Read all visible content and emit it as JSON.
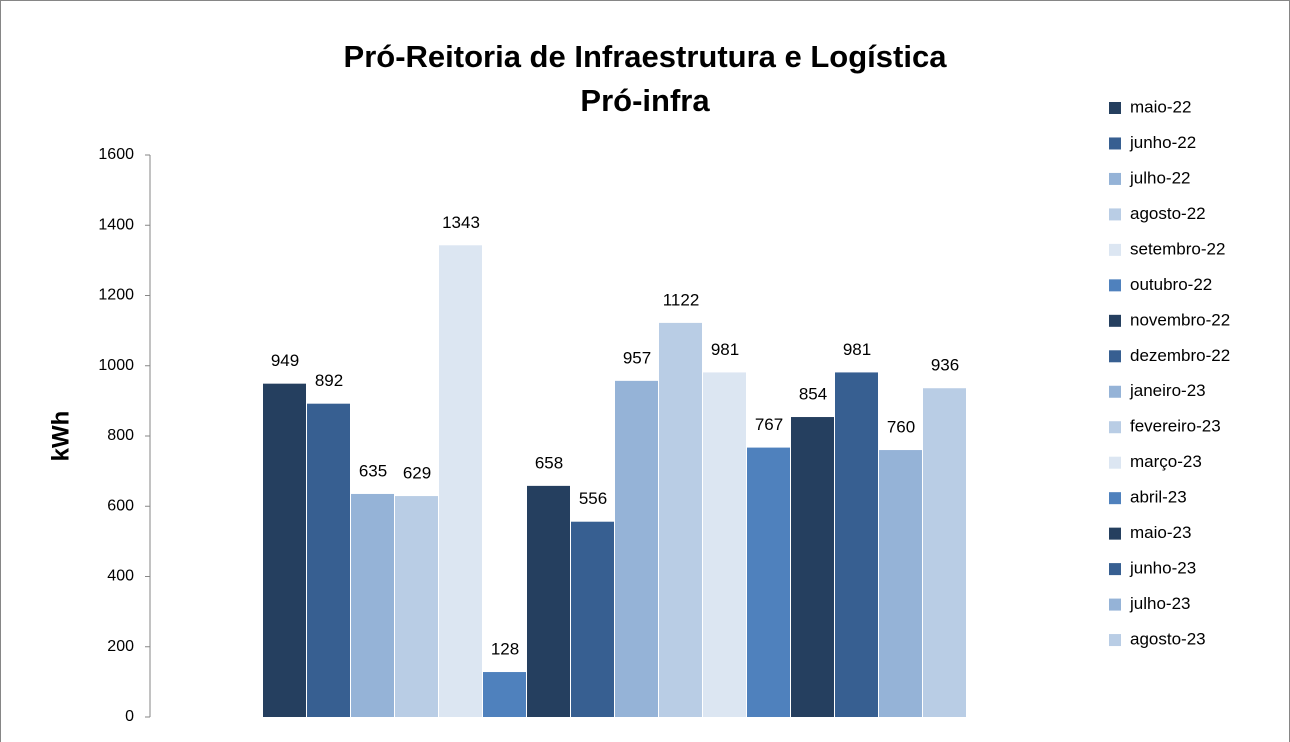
{
  "chart_data": {
    "type": "bar",
    "title": "Pró-Reitoria de Infraestrutura e Logística",
    "subtitle": "Pró-infra",
    "ylabel": "kWh",
    "categories": [
      null
    ],
    "series": [
      {
        "name": "maio-22",
        "color": "#253f5f",
        "values": [
          949
        ]
      },
      {
        "name": "junho-22",
        "color": "#375f91",
        "values": [
          892
        ]
      },
      {
        "name": "julho-22",
        "color": "#95b3d7",
        "values": [
          635
        ]
      },
      {
        "name": "agosto-22",
        "color": "#b9cde5",
        "values": [
          629
        ]
      },
      {
        "name": "setembro-22",
        "color": "#dce6f2",
        "values": [
          1343
        ]
      },
      {
        "name": "outubro-22",
        "color": "#4f81bd",
        "values": [
          128
        ]
      },
      {
        "name": "novembro-22",
        "color": "#253f5f",
        "values": [
          658
        ]
      },
      {
        "name": "dezembro-22",
        "color": "#375f91",
        "values": [
          556
        ]
      },
      {
        "name": "janeiro-23",
        "color": "#95b3d7",
        "values": [
          957
        ]
      },
      {
        "name": "fevereiro-23",
        "color": "#b9cde5",
        "values": [
          1122
        ]
      },
      {
        "name": "março-23",
        "color": "#dce6f2",
        "values": [
          981
        ]
      },
      {
        "name": "abril-23",
        "color": "#4f81bd",
        "values": [
          767
        ]
      },
      {
        "name": "maio-23",
        "color": "#253f5f",
        "values": [
          854
        ]
      },
      {
        "name": "junho-23",
        "color": "#375f91",
        "values": [
          981
        ]
      },
      {
        "name": "julho-23",
        "color": "#95b3d7",
        "values": [
          760
        ]
      },
      {
        "name": "agosto-23",
        "color": "#b9cde5",
        "values": [
          936
        ]
      }
    ],
    "ylim": [
      0,
      1600
    ],
    "yticks": [
      0,
      200,
      400,
      600,
      800,
      1000,
      1200,
      1400,
      1600
    ],
    "grid": false,
    "legend": "right"
  }
}
